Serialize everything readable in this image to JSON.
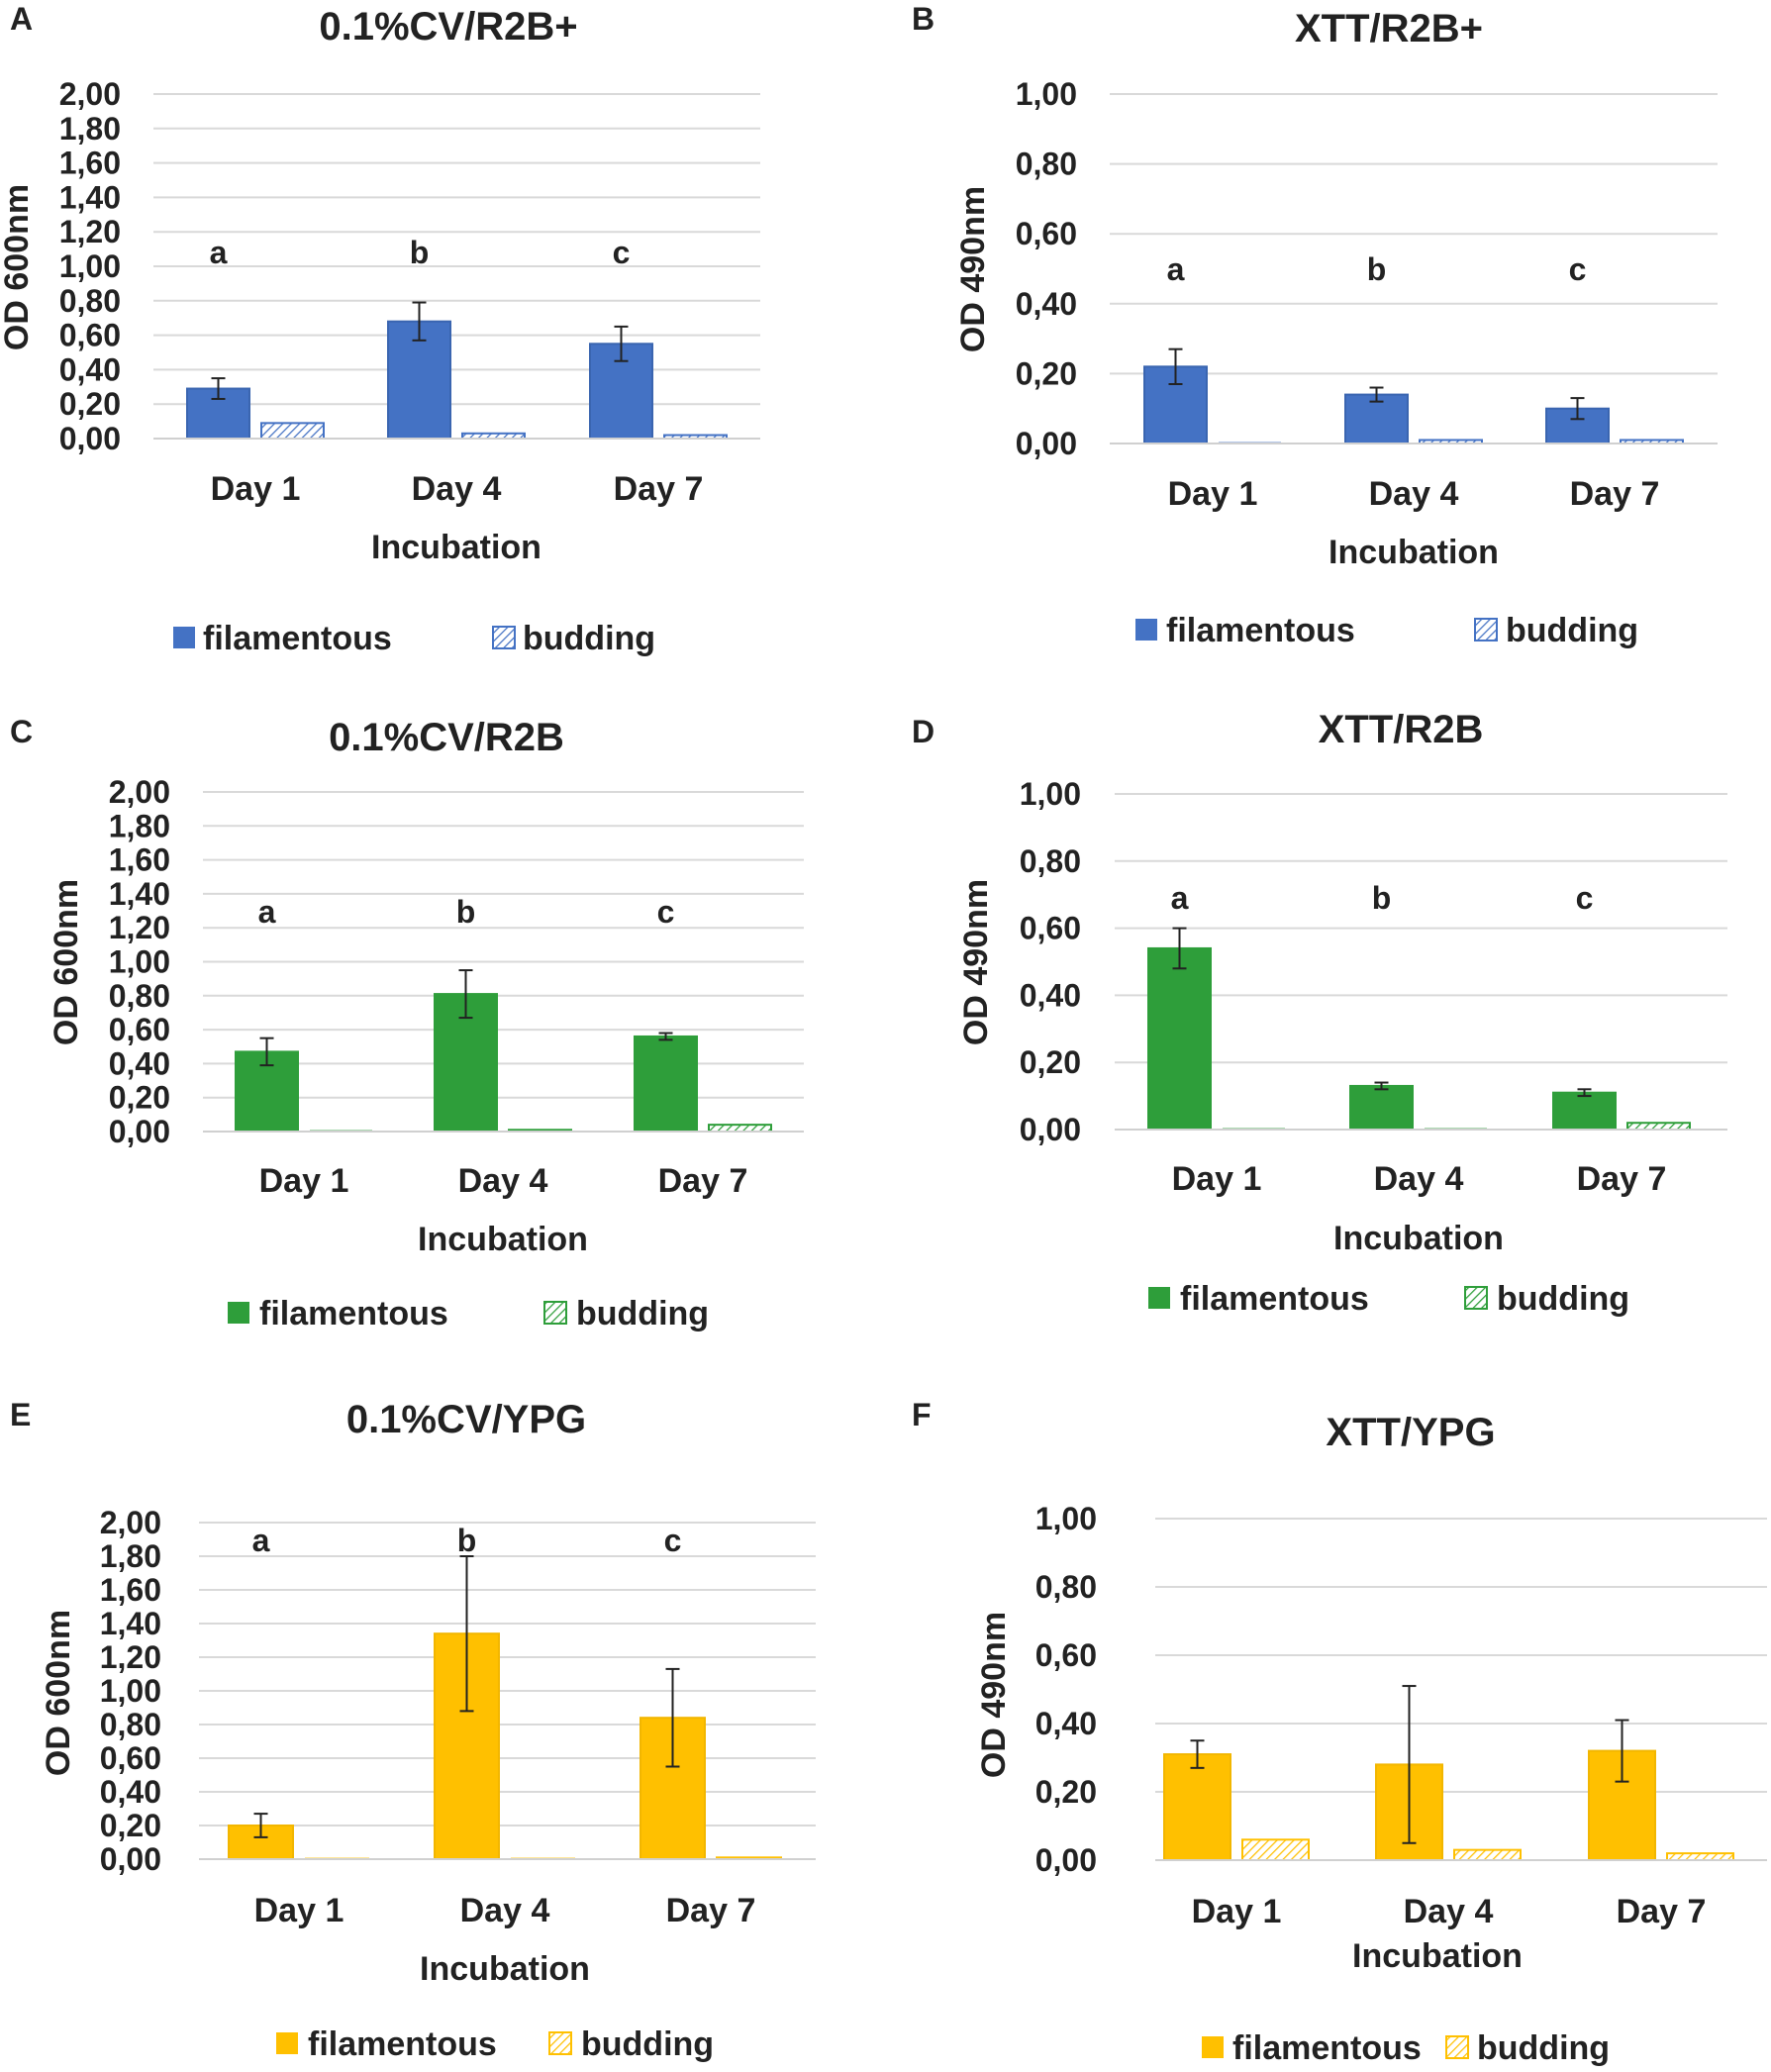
{
  "figure": {
    "series_names": [
      "filamentous",
      "budding"
    ]
  },
  "chart_data": [
    {
      "panel": "A",
      "type": "bar",
      "title": "0.1%CV/R2B+",
      "ylabel": "OD 600nm",
      "xlabel": "Incubation",
      "categories": [
        "Day 1",
        "Day 4",
        "Day 7"
      ],
      "ylim": [
        0,
        2
      ],
      "yticks": [
        "0,00",
        "0,20",
        "0,40",
        "0,60",
        "0,80",
        "1,00",
        "1,20",
        "1,40",
        "1,60",
        "1,80",
        "2,00"
      ],
      "series": [
        {
          "name": "filamentous",
          "values": [
            0.29,
            0.68,
            0.55
          ],
          "errors": [
            0.06,
            0.11,
            0.1
          ]
        },
        {
          "name": "budding",
          "values": [
            0.09,
            0.03,
            0.02
          ],
          "errors": [
            0,
            0,
            0
          ]
        }
      ],
      "annotations": [
        "a",
        "b",
        "c"
      ],
      "legend": [
        "filamentous",
        "budding"
      ],
      "color": "#4472C4",
      "edge": "#3A65B0"
    },
    {
      "panel": "B",
      "type": "bar",
      "title": "XTT/R2B+",
      "ylabel": "OD 490nm",
      "xlabel": "Incubation",
      "categories": [
        "Day 1",
        "Day 4",
        "Day 7"
      ],
      "ylim": [
        0,
        1
      ],
      "yticks": [
        "0,00",
        "0,20",
        "0,40",
        "0,60",
        "0,80",
        "1,00"
      ],
      "series": [
        {
          "name": "filamentous",
          "values": [
            0.22,
            0.14,
            0.1
          ],
          "errors": [
            0.05,
            0.02,
            0.03
          ]
        },
        {
          "name": "budding",
          "values": [
            0.0,
            0.01,
            0.01
          ],
          "errors": [
            0,
            0,
            0
          ]
        }
      ],
      "annotations": [
        "a",
        "b",
        "c"
      ],
      "legend": [
        "filamentous",
        "budding"
      ],
      "color": "#4472C4",
      "edge": "#3A65B0"
    },
    {
      "panel": "C",
      "type": "bar",
      "title": "0.1%CV/R2B",
      "ylabel": "OD 600nm",
      "xlabel": "Incubation",
      "categories": [
        "Day 1",
        "Day 4",
        "Day 7"
      ],
      "ylim": [
        0,
        2
      ],
      "yticks": [
        "0,00",
        "0,20",
        "0,40",
        "0,60",
        "0,80",
        "1,00",
        "1,20",
        "1,40",
        "1,60",
        "1,80",
        "2,00"
      ],
      "series": [
        {
          "name": "filamentous",
          "values": [
            0.47,
            0.81,
            0.56
          ],
          "errors": [
            0.08,
            0.14,
            0.02
          ]
        },
        {
          "name": "budding",
          "values": [
            0.0,
            0.01,
            0.04
          ],
          "errors": [
            0,
            0,
            0
          ]
        }
      ],
      "annotations": [
        "a",
        "b",
        "c"
      ],
      "legend": [
        "filamentous",
        "budding"
      ],
      "color": "#2E9E3A",
      "edge": "#2E9E3A"
    },
    {
      "panel": "D",
      "type": "bar",
      "title": "XTT/R2B",
      "ylabel": "OD 490nm",
      "xlabel": "Incubation",
      "categories": [
        "Day 1",
        "Day 4",
        "Day 7"
      ],
      "ylim": [
        0,
        1
      ],
      "yticks": [
        "0,00",
        "0,20",
        "0,40",
        "0,60",
        "0,80",
        "1,00"
      ],
      "series": [
        {
          "name": "filamentous",
          "values": [
            0.54,
            0.13,
            0.11
          ],
          "errors": [
            0.06,
            0.01,
            0.01
          ]
        },
        {
          "name": "budding",
          "values": [
            0.0,
            0.0,
            0.02
          ],
          "errors": [
            0,
            0,
            0
          ]
        }
      ],
      "annotations": [
        "a",
        "b",
        "c"
      ],
      "legend": [
        "filamentous",
        "budding"
      ],
      "color": "#2E9E3A",
      "edge": "#2E9E3A"
    },
    {
      "panel": "E",
      "type": "bar",
      "title": "0.1%CV/YPG",
      "ylabel": "OD 600nm",
      "xlabel": "Incubation",
      "categories": [
        "Day 1",
        "Day 4",
        "Day 7"
      ],
      "ylim": [
        0,
        2
      ],
      "yticks": [
        "0,00",
        "0,20",
        "0,40",
        "0,60",
        "0,80",
        "1,00",
        "1,20",
        "1,40",
        "1,60",
        "1,80",
        "2,00"
      ],
      "series": [
        {
          "name": "filamentous",
          "values": [
            0.2,
            1.34,
            0.84
          ],
          "errors": [
            0.07,
            0.46,
            0.29
          ]
        },
        {
          "name": "budding",
          "values": [
            0.0,
            0.0,
            0.01
          ],
          "errors": [
            0,
            0,
            0
          ]
        }
      ],
      "annotations": [
        "a",
        "b",
        "c"
      ],
      "legend": [
        "filamentous",
        "budding"
      ],
      "color": "#FFC000",
      "edge": "#F2B600"
    },
    {
      "panel": "F",
      "type": "bar",
      "title": "XTT/YPG",
      "ylabel": "OD 490nm",
      "xlabel": "Incubation",
      "categories": [
        "Day 1",
        "Day 4",
        "Day 7"
      ],
      "ylim": [
        0,
        1
      ],
      "yticks": [
        "0,00",
        "0,20",
        "0,40",
        "0,60",
        "0,80",
        "1,00"
      ],
      "series": [
        {
          "name": "filamentous",
          "values": [
            0.31,
            0.28,
            0.32
          ],
          "errors": [
            0.04,
            0.23,
            0.09
          ]
        },
        {
          "name": "budding",
          "values": [
            0.06,
            0.03,
            0.02
          ],
          "errors": [
            0,
            0,
            0
          ]
        }
      ],
      "annotations": [],
      "legend": [
        "filamentous",
        "budding"
      ],
      "color": "#FFC000",
      "edge": "#F2B600"
    }
  ]
}
